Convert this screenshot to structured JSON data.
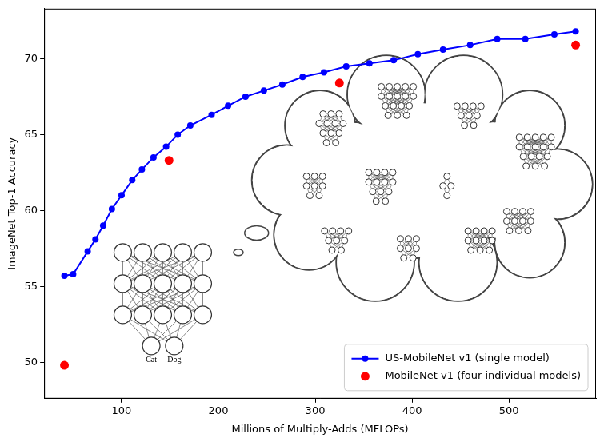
{
  "chart_data": {
    "type": "line",
    "x_label": "Millions of Multiply-Adds (MFLOPs)",
    "y_label": "ImageNet Top-1 Accuracy",
    "xlim": [
      20,
      590
    ],
    "xticks": [
      100,
      200,
      300,
      400,
      500
    ],
    "ylim": [
      47.6,
      73.3
    ],
    "yticks": [
      50,
      55,
      60,
      65,
      70
    ],
    "grid": false,
    "legend": "lower right",
    "series": [
      {
        "name": "US-MobileNet v1 (single model)",
        "type": "line",
        "color": "#0000ff",
        "marker": "circle",
        "line_style": "solid",
        "x": [
          41,
          50,
          65,
          73,
          81,
          90,
          100,
          111,
          121,
          133,
          146,
          158,
          171,
          193,
          210,
          228,
          247,
          266,
          287,
          309,
          332,
          356,
          381,
          406,
          432,
          460,
          488,
          517,
          547,
          569
        ],
        "values": [
          55.7,
          55.8,
          57.3,
          58.1,
          59.0,
          60.1,
          61.0,
          62.0,
          62.7,
          63.5,
          64.2,
          65.0,
          65.6,
          66.3,
          66.9,
          67.5,
          67.9,
          68.3,
          68.8,
          69.1,
          69.5,
          69.7,
          69.9,
          70.3,
          70.6,
          70.9,
          71.3,
          71.3,
          71.6,
          71.8
        ]
      },
      {
        "name": "MobileNet v1 (four individual models)",
        "type": "scatter",
        "color": "#ff0000",
        "marker": "circle",
        "x": [
          41,
          149,
          325,
          569
        ],
        "values": [
          49.8,
          63.3,
          68.4,
          70.9
        ]
      }
    ],
    "annotations": [
      {
        "text": "Cat"
      },
      {
        "text": "Dog"
      }
    ]
  }
}
